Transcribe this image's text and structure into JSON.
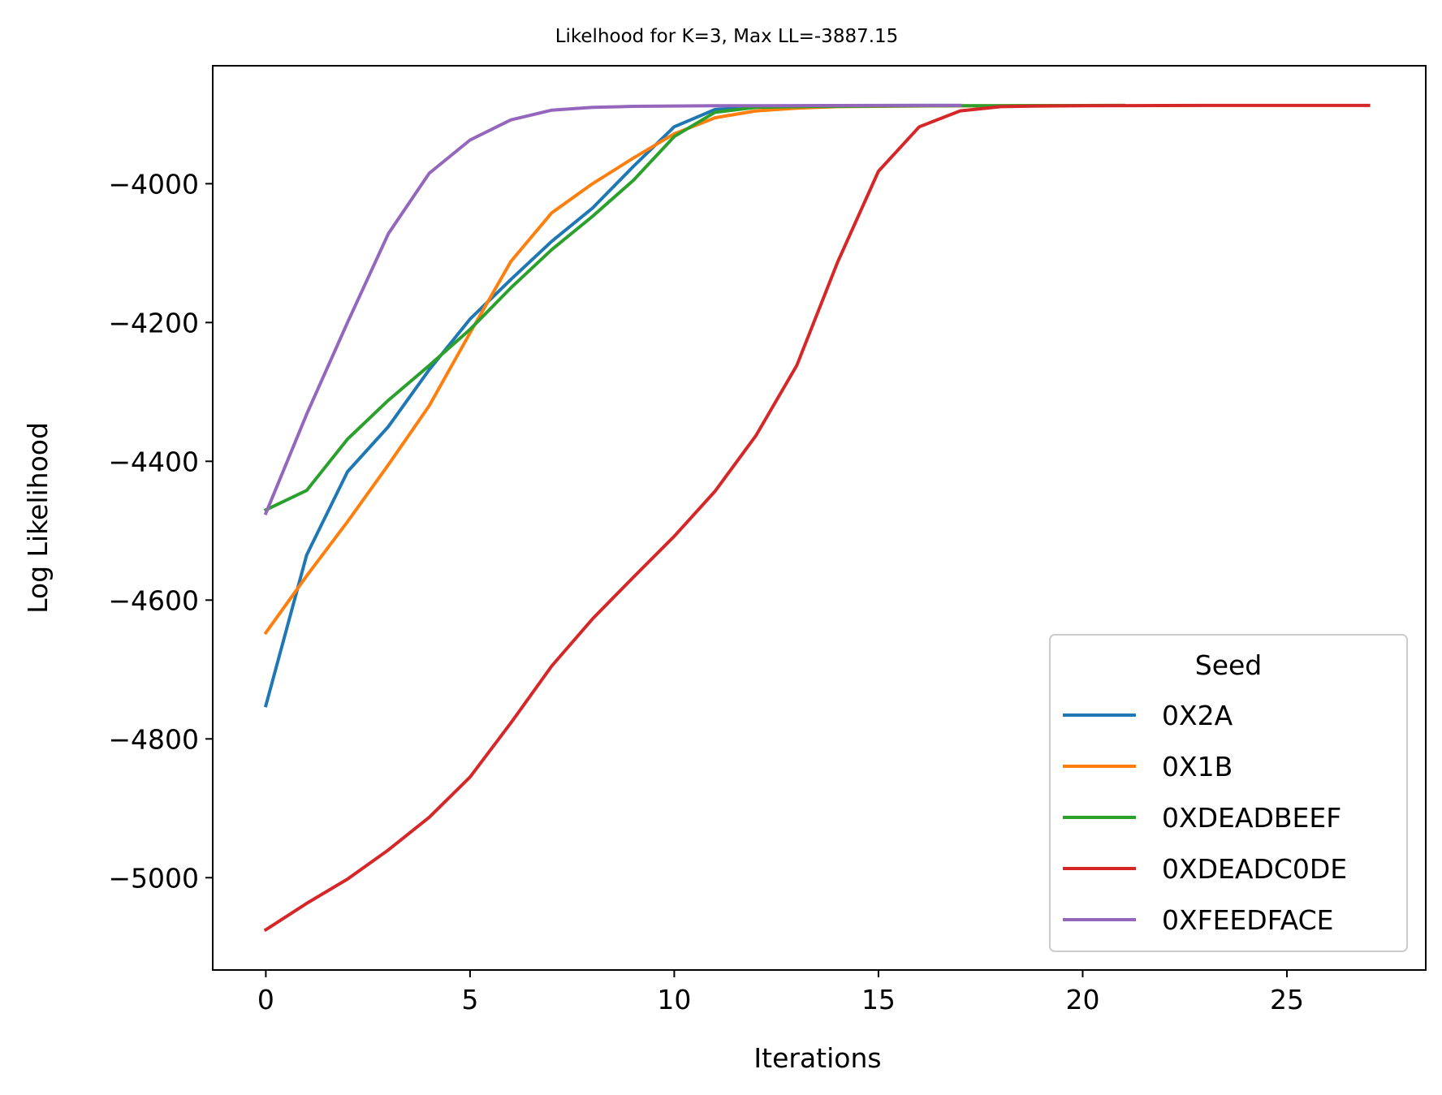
{
  "chart_data": {
    "type": "line",
    "title": "Likelhood for K=3,  Max LL=-3887.15",
    "xlabel": "Iterations",
    "ylabel": "Log Likelihood",
    "xlim": [
      -1.3,
      28.4
    ],
    "ylim": [
      -5133,
      -3830
    ],
    "xticks": [
      0,
      5,
      10,
      15,
      20,
      25
    ],
    "yticks": [
      -5000,
      -4800,
      -4600,
      -4400,
      -4200,
      -4000
    ],
    "grid": false,
    "legend": {
      "title": "Seed",
      "placement": "lower-right"
    },
    "series": [
      {
        "name": "0X2A",
        "color": "#1f77b4",
        "x": [
          0,
          1,
          2,
          3,
          4,
          5,
          6,
          7,
          8,
          9,
          10,
          11,
          12,
          13,
          14,
          15,
          16,
          17
        ],
        "values": [
          -4752,
          -4535,
          -4415,
          -4350,
          -4268,
          -4195,
          -4138,
          -4083,
          -4035,
          -3975,
          -3918,
          -3893,
          -3889,
          -3888,
          -3887.5,
          -3887.3,
          -3887.2,
          -3887.15
        ]
      },
      {
        "name": "0X1B",
        "color": "#ff7f0e",
        "x": [
          0,
          1,
          2,
          3,
          4,
          5,
          6,
          7,
          8,
          9,
          10,
          11,
          12,
          13,
          14,
          15,
          16,
          17,
          18,
          19,
          20,
          21
        ],
        "values": [
          -4647,
          -4565,
          -4487,
          -4405,
          -4320,
          -4215,
          -4112,
          -4042,
          -4000,
          -3963,
          -3928,
          -3905,
          -3895,
          -3891,
          -3889,
          -3888.5,
          -3888,
          -3887.8,
          -3887.6,
          -3887.4,
          -3887.3,
          -3887.2
        ]
      },
      {
        "name": "0XDEADBEEF",
        "color": "#2ca02c",
        "x": [
          0,
          1,
          2,
          3,
          4,
          5,
          6,
          7,
          8,
          9,
          10,
          11,
          12,
          13,
          14,
          15,
          16,
          17,
          18,
          19,
          20,
          21
        ],
        "values": [
          -4470,
          -4442,
          -4368,
          -4312,
          -4262,
          -4210,
          -4150,
          -4095,
          -4047,
          -3995,
          -3932,
          -3897,
          -3890,
          -3889,
          -3888.5,
          -3888,
          -3887.8,
          -3887.6,
          -3887.5,
          -3887.4,
          -3887.3,
          -3887.2
        ]
      },
      {
        "name": "0XDEADC0DE",
        "color": "#d62728",
        "x": [
          0,
          1,
          2,
          3,
          4,
          5,
          6,
          7,
          8,
          9,
          10,
          11,
          12,
          13,
          14,
          15,
          16,
          17,
          18,
          19,
          20,
          21,
          22,
          23,
          24,
          25,
          26,
          27
        ],
        "values": [
          -5075,
          -5037,
          -5002,
          -4960,
          -4913,
          -4855,
          -4777,
          -4695,
          -4627,
          -4567,
          -4508,
          -4443,
          -4363,
          -4262,
          -4113,
          -3982,
          -3918,
          -3895,
          -3889,
          -3888,
          -3887.6,
          -3887.4,
          -3887.3,
          -3887.2,
          -3887.2,
          -3887.15,
          -3887.15,
          -3887.15
        ]
      },
      {
        "name": "0XFEEDFACE",
        "color": "#9467bd",
        "x": [
          0,
          1,
          2,
          3,
          4,
          5,
          6,
          7,
          8,
          9,
          10,
          11,
          12,
          13,
          14,
          15,
          16,
          17
        ],
        "values": [
          -4475,
          -4332,
          -4200,
          -4072,
          -3985,
          -3937,
          -3908,
          -3894,
          -3890,
          -3888.5,
          -3888,
          -3887.7,
          -3887.5,
          -3887.4,
          -3887.3,
          -3887.2,
          -3887.2,
          -3887.15
        ]
      }
    ]
  }
}
